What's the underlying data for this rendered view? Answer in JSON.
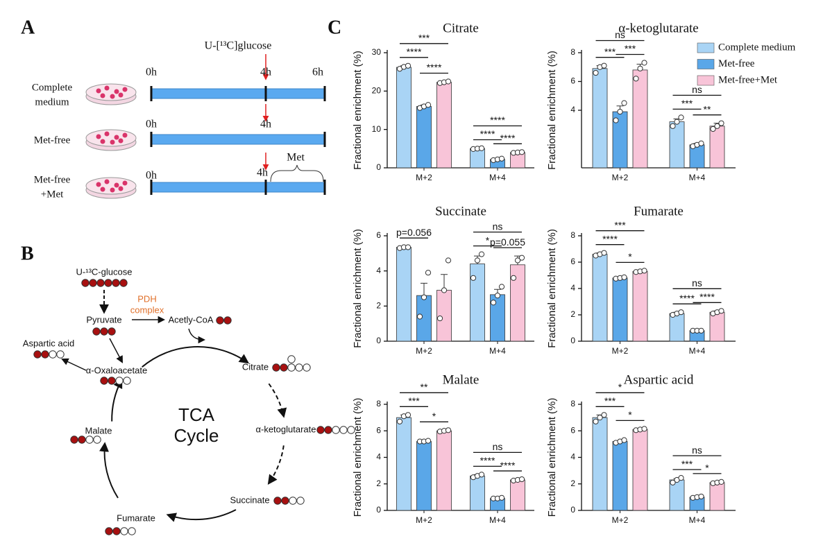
{
  "panel_a": {
    "label": "A",
    "tracer": "U-[¹³C]glucose",
    "rows": [
      {
        "name": [
          "Complete",
          "medium"
        ],
        "times": [
          "0h",
          "4h",
          "6h"
        ]
      },
      {
        "name": [
          "Met-free"
        ],
        "times": [
          "0h",
          "4h"
        ]
      },
      {
        "name": [
          "Met-free",
          "+Met"
        ],
        "times": [
          "0h",
          "4h"
        ],
        "note": "Met"
      }
    ]
  },
  "panel_b": {
    "label": "B",
    "glucose": "U-¹³C-glucose",
    "pyruvate": "Pyruvate",
    "enzyme": [
      "PDH",
      "complex"
    ],
    "acetyl": "Acetly-CoA",
    "aspartate": "Aspartic acid",
    "oaa": "α-Oxaloacetate",
    "citrate": "Citrate",
    "akg": "α-ketoglutarate",
    "succinate": "Succinate",
    "fumarate": "Fumarate",
    "malate": "Malate",
    "cycle": [
      "TCA",
      "Cycle"
    ]
  },
  "panel_c": {
    "label": "C"
  },
  "chart_data": [
    {
      "type": "bar",
      "title": "Citrate",
      "ylabel": "Fractional enrichment (%)",
      "categories": [
        "M+2",
        "M+4"
      ],
      "ylim": [
        0,
        30
      ],
      "yticks": [
        0,
        10,
        20,
        30
      ],
      "series": [
        {
          "color": "#a9d4f5",
          "values": [
            26.2,
            5.0
          ],
          "errors": [
            0.4,
            0.15
          ],
          "points": [
            [
              25.8,
              26.3,
              26.6
            ],
            [
              4.9,
              5.0,
              5.1
            ]
          ]
        },
        {
          "color": "#5aa7e8",
          "values": [
            16.0,
            2.2
          ],
          "errors": [
            0.4,
            0.2
          ],
          "points": [
            [
              15.6,
              16.0,
              16.4
            ],
            [
              2.0,
              2.2,
              2.4
            ]
          ]
        },
        {
          "color": "#f8c4d8",
          "values": [
            22.3,
            4.0
          ],
          "errors": [
            0.2,
            0.1
          ],
          "points": [
            [
              22.1,
              22.3,
              22.5
            ],
            [
              3.9,
              4.0,
              4.1
            ]
          ]
        }
      ],
      "annotations": [
        {
          "label": "****",
          "category": 0,
          "series": [
            0,
            1
          ]
        },
        {
          "label": "****",
          "category": 0,
          "series": [
            1,
            2
          ]
        },
        {
          "label": "***",
          "category": 0,
          "series": [
            0,
            2
          ]
        },
        {
          "label": "****",
          "category": 1,
          "series": [
            0,
            1
          ]
        },
        {
          "label": "****",
          "category": 1,
          "series": [
            1,
            2
          ]
        },
        {
          "label": "****",
          "category": 1,
          "series": [
            0,
            2
          ]
        }
      ]
    },
    {
      "type": "bar",
      "title": "α-ketoglutarate",
      "ylabel": "Fractional enrichment (%)",
      "categories": [
        "M+2",
        "M+4"
      ],
      "ylim": [
        0,
        8
      ],
      "yticks": [
        4,
        6,
        8
      ],
      "legend": "upper right",
      "series": [
        {
          "name": "Complete medium",
          "color": "#a9d4f5",
          "values": [
            6.9,
            3.2
          ],
          "errors": [
            0.2,
            0.2
          ],
          "points": [
            [
              6.6,
              7.0,
              7.1
            ],
            [
              2.9,
              3.2,
              3.5
            ]
          ]
        },
        {
          "name": "Met-free",
          "color": "#5aa7e8",
          "values": [
            3.9,
            1.6
          ],
          "errors": [
            0.4,
            0.1
          ],
          "points": [
            [
              3.3,
              3.9,
              4.5
            ],
            [
              1.5,
              1.6,
              1.7
            ]
          ]
        },
        {
          "name": "Met-free+Met",
          "color": "#f8c4d8",
          "values": [
            6.8,
            2.9
          ],
          "errors": [
            0.4,
            0.2
          ],
          "points": [
            [
              6.2,
              6.9,
              7.3
            ],
            [
              2.7,
              2.9,
              3.1
            ]
          ]
        }
      ],
      "annotations": [
        {
          "label": "***",
          "category": 0,
          "series": [
            0,
            1
          ]
        },
        {
          "label": "***",
          "category": 0,
          "series": [
            1,
            2
          ]
        },
        {
          "label": "ns",
          "category": 0,
          "series": [
            0,
            2
          ]
        },
        {
          "label": "***",
          "category": 1,
          "series": [
            0,
            1
          ]
        },
        {
          "label": "**",
          "category": 1,
          "series": [
            1,
            2
          ]
        },
        {
          "label": "ns",
          "category": 1,
          "series": [
            0,
            2
          ]
        }
      ]
    },
    {
      "type": "bar",
      "title": "Succinate",
      "ylabel": "Fractional enrichment (%)",
      "categories": [
        "M+2",
        "M+4"
      ],
      "ylim": [
        0,
        6
      ],
      "yticks": [
        0,
        2,
        4,
        6
      ],
      "series": [
        {
          "color": "#a9d4f5",
          "values": [
            5.35,
            4.4
          ],
          "errors": [
            0.05,
            0.45
          ],
          "points": [
            [
              5.3,
              5.35,
              5.35
            ],
            [
              3.6,
              4.6,
              4.95
            ]
          ]
        },
        {
          "color": "#5aa7e8",
          "values": [
            2.6,
            2.65
          ],
          "errors": [
            0.7,
            0.3
          ],
          "points": [
            [
              1.4,
              2.5,
              3.9
            ],
            [
              2.2,
              2.6,
              3.1
            ]
          ]
        },
        {
          "color": "#f8c4d8",
          "values": [
            2.9,
            4.35
          ],
          "errors": [
            0.9,
            0.5
          ],
          "points": [
            [
              1.3,
              2.9,
              4.6
            ],
            [
              3.6,
              4.6,
              4.75
            ]
          ]
        }
      ],
      "annotations": [
        {
          "label": "p=0.056",
          "category": 0,
          "series": [
            0,
            1
          ]
        },
        {
          "label": "*",
          "category": 1,
          "series": [
            0,
            1
          ]
        },
        {
          "label": "p=0.055",
          "category": 1,
          "series": [
            1,
            2
          ]
        },
        {
          "label": "ns",
          "category": 1,
          "series": [
            0,
            2
          ]
        }
      ]
    },
    {
      "type": "bar",
      "title": "Fumarate",
      "ylabel": "Fractional enrichment (%)",
      "categories": [
        "M+2",
        "M+4"
      ],
      "ylim": [
        0,
        8
      ],
      "yticks": [
        0,
        2,
        4,
        6,
        8
      ],
      "series": [
        {
          "color": "#a9d4f5",
          "values": [
            6.6,
            2.1
          ],
          "errors": [
            0.1,
            0.1
          ],
          "points": [
            [
              6.5,
              6.6,
              6.7
            ],
            [
              2.0,
              2.1,
              2.2
            ]
          ]
        },
        {
          "color": "#5aa7e8",
          "values": [
            4.8,
            0.8
          ],
          "errors": [
            0.05,
            0.05
          ],
          "points": [
            [
              4.75,
              4.8,
              4.85
            ],
            [
              0.8,
              0.8,
              0.8
            ]
          ]
        },
        {
          "color": "#f8c4d8",
          "values": [
            5.3,
            2.2
          ],
          "errors": [
            0.05,
            0.1
          ],
          "points": [
            [
              5.25,
              5.3,
              5.35
            ],
            [
              2.1,
              2.2,
              2.3
            ]
          ]
        }
      ],
      "annotations": [
        {
          "label": "****",
          "category": 0,
          "series": [
            0,
            1
          ]
        },
        {
          "label": "*",
          "category": 0,
          "series": [
            1,
            2
          ]
        },
        {
          "label": "***",
          "category": 0,
          "series": [
            0,
            2
          ]
        },
        {
          "label": "****",
          "category": 1,
          "series": [
            0,
            1
          ]
        },
        {
          "label": "****",
          "category": 1,
          "series": [
            1,
            2
          ]
        },
        {
          "label": "ns",
          "category": 1,
          "series": [
            0,
            2
          ]
        }
      ]
    },
    {
      "type": "bar",
      "title": "Malate",
      "ylabel": "Fractional enrichment (%)",
      "categories": [
        "M+2",
        "M+4"
      ],
      "ylim": [
        0,
        8
      ],
      "yticks": [
        0,
        2,
        4,
        6,
        8
      ],
      "series": [
        {
          "color": "#a9d4f5",
          "values": [
            7.0,
            2.6
          ],
          "errors": [
            0.2,
            0.1
          ],
          "points": [
            [
              6.7,
              7.1,
              7.2
            ],
            [
              2.5,
              2.6,
              2.7
            ]
          ]
        },
        {
          "color": "#5aa7e8",
          "values": [
            5.2,
            0.9
          ],
          "errors": [
            0.05,
            0.05
          ],
          "points": [
            [
              5.2,
              5.2,
              5.25
            ],
            [
              0.9,
              0.9,
              0.95
            ]
          ]
        },
        {
          "color": "#f8c4d8",
          "values": [
            6.0,
            2.3
          ],
          "errors": [
            0.05,
            0.05
          ],
          "points": [
            [
              5.95,
              6.0,
              6.05
            ],
            [
              2.25,
              2.3,
              2.35
            ]
          ]
        }
      ],
      "annotations": [
        {
          "label": "***",
          "category": 0,
          "series": [
            0,
            1
          ]
        },
        {
          "label": "*",
          "category": 0,
          "series": [
            1,
            2
          ]
        },
        {
          "label": "**",
          "category": 0,
          "series": [
            0,
            2
          ]
        },
        {
          "label": "****",
          "category": 1,
          "series": [
            0,
            1
          ]
        },
        {
          "label": "****",
          "category": 1,
          "series": [
            1,
            2
          ]
        },
        {
          "label": "ns",
          "category": 1,
          "series": [
            0,
            2
          ]
        }
      ]
    },
    {
      "type": "bar",
      "title": "Aspartic acid",
      "ylabel": "Fractional enrichment (%)",
      "categories": [
        "M+2",
        "M+4"
      ],
      "ylim": [
        0,
        8
      ],
      "yticks": [
        0,
        2,
        4,
        6,
        8
      ],
      "series": [
        {
          "color": "#a9d4f5",
          "values": [
            7.0,
            2.3
          ],
          "errors": [
            0.2,
            0.1
          ],
          "points": [
            [
              6.7,
              7.0,
              7.2
            ],
            [
              2.1,
              2.3,
              2.45
            ]
          ]
        },
        {
          "color": "#5aa7e8",
          "values": [
            5.2,
            1.0
          ],
          "errors": [
            0.05,
            0.05
          ],
          "points": [
            [
              5.1,
              5.2,
              5.3
            ],
            [
              0.95,
              1.0,
              1.05
            ]
          ]
        },
        {
          "color": "#f8c4d8",
          "values": [
            6.1,
            2.1
          ],
          "errors": [
            0.05,
            0.05
          ],
          "points": [
            [
              6.05,
              6.1,
              6.15
            ],
            [
              2.05,
              2.1,
              2.15
            ]
          ]
        }
      ],
      "annotations": [
        {
          "label": "***",
          "category": 0,
          "series": [
            0,
            1
          ]
        },
        {
          "label": "*",
          "category": 0,
          "series": [
            1,
            2
          ]
        },
        {
          "label": "*",
          "category": 0,
          "series": [
            0,
            2
          ]
        },
        {
          "label": "***",
          "category": 1,
          "series": [
            0,
            1
          ]
        },
        {
          "label": "*",
          "category": 1,
          "series": [
            1,
            2
          ]
        },
        {
          "label": "ns",
          "category": 1,
          "series": [
            0,
            2
          ]
        }
      ]
    }
  ]
}
